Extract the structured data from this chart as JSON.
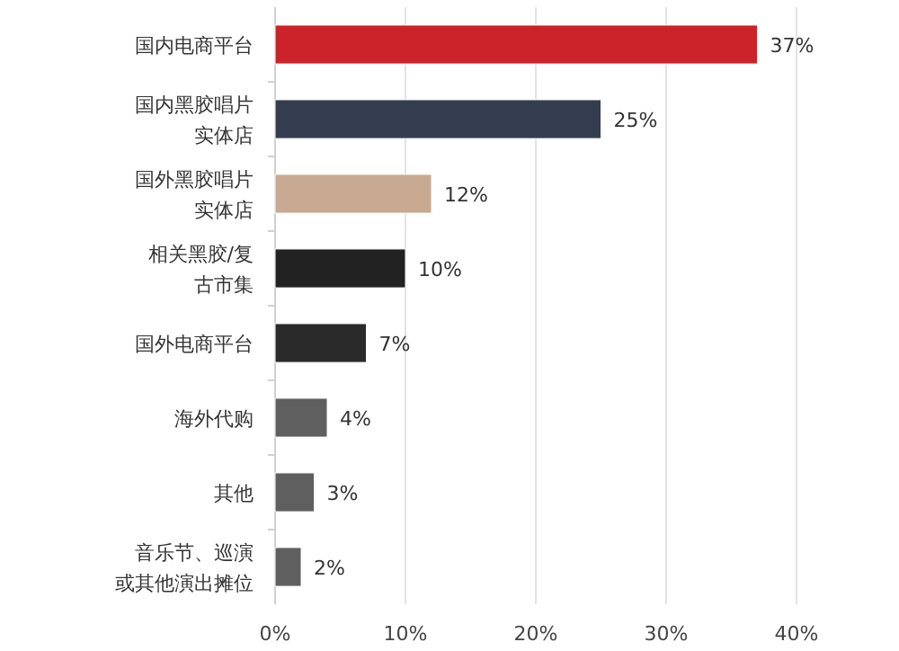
{
  "chart_data": {
    "type": "bar",
    "orientation": "horizontal",
    "categories": [
      "国内电商平台",
      "国内黑胶唱片实体店",
      "国外黑胶唱片实体店",
      "相关黑胶/复古市集",
      "国外电商平台",
      "海外代购",
      "其他",
      "音乐节、巡演或其他演出摊位"
    ],
    "values": [
      37,
      25,
      12,
      10,
      7,
      4,
      3,
      2
    ],
    "colors": [
      "#cc2229",
      "#333d4f",
      "#c8a992",
      "#222222",
      "#2a2a2a",
      "#5f5f5f",
      "#5f5f5f",
      "#5f5f5f"
    ],
    "value_labels": [
      "37%",
      "25%",
      "12%",
      "10%",
      "7%",
      "4%",
      "3%",
      "2%"
    ],
    "xlim": [
      0,
      40
    ],
    "xticks": [
      {
        "value": 0,
        "label": "0%"
      },
      {
        "value": 10,
        "label": "10%"
      },
      {
        "value": 20,
        "label": "20%"
      },
      {
        "value": 30,
        "label": "30%"
      },
      {
        "value": 40,
        "label": "40%"
      }
    ],
    "grid": "x"
  }
}
